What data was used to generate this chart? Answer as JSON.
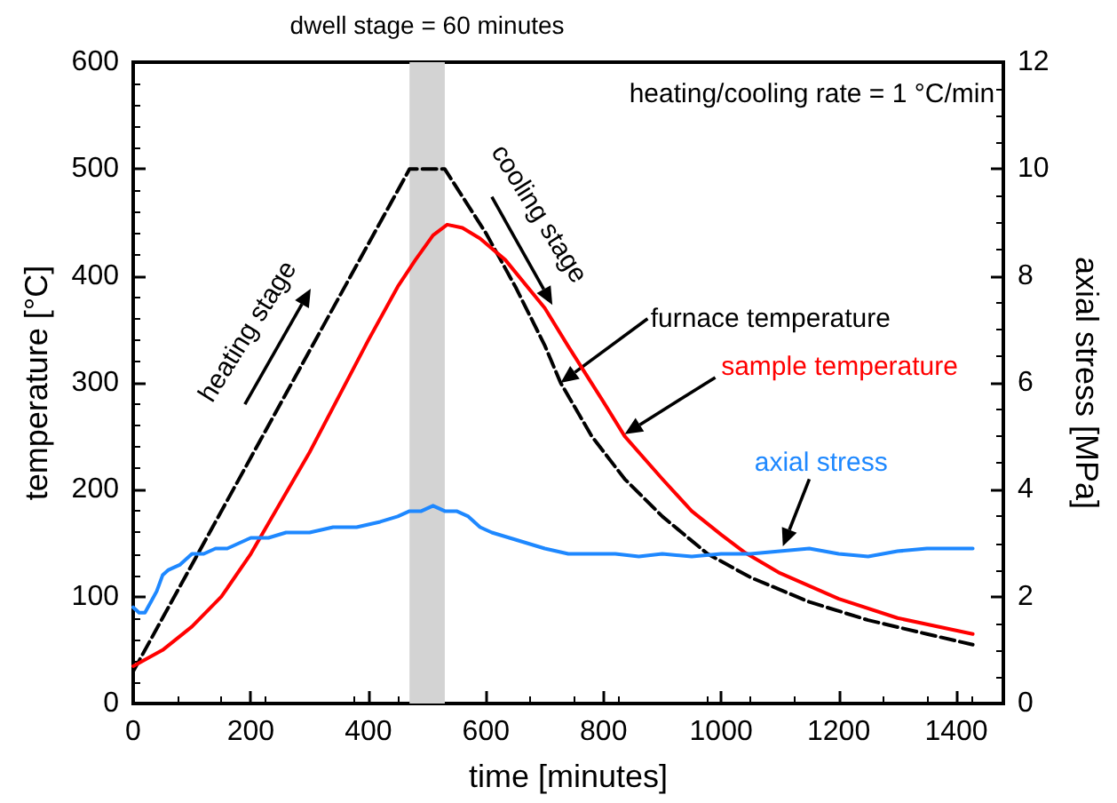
{
  "chart_data": {
    "type": "line",
    "xlabel": "time [minutes]",
    "ylabel": "temperature [°C]",
    "y2label": "axial stress [MPa]",
    "xlim": [
      0,
      1480
    ],
    "xticks": [
      0,
      200,
      400,
      600,
      800,
      1000,
      1200,
      1400
    ],
    "ylim": [
      0,
      600
    ],
    "yticks": [
      0,
      100,
      200,
      300,
      400,
      500,
      600
    ],
    "y2lim": [
      0,
      12
    ],
    "y2ticks": [
      0,
      2,
      4,
      6,
      8,
      10,
      12
    ],
    "grid": false,
    "legend": false,
    "marker": "none",
    "bands": [
      {
        "axis": "x",
        "from": 470,
        "to": 530,
        "label": "dwell stage = 60 minutes",
        "color": "#d3d3d3"
      }
    ],
    "annotations": [
      "heating/cooling rate = 1 °C/min",
      "heating stage",
      "cooling stage"
    ],
    "series": [
      {
        "name": "furnace temperature",
        "color": "#000000",
        "line_style": "dashed",
        "x": [
          0,
          470,
          530,
          600,
          650,
          700,
          727,
          780,
          836,
          900,
          977,
          1050,
          1150,
          1250,
          1350,
          1428
        ],
        "values": [
          30,
          500,
          500,
          440,
          390,
          335,
          300,
          250,
          210,
          175,
          140,
          118,
          95,
          78,
          65,
          55
        ]
      },
      {
        "name": "sample temperature",
        "color": "#ff0000",
        "line_style": "solid",
        "x": [
          0,
          50,
          100,
          150,
          200,
          300,
          400,
          450,
          480,
          510,
          534,
          560,
          590,
          633,
          700,
          739,
          800,
          836,
          900,
          950,
          1000,
          1041,
          1100,
          1200,
          1300,
          1428
        ],
        "values": [
          35,
          50,
          72,
          100,
          140,
          235,
          340,
          390,
          415,
          438,
          448,
          445,
          435,
          415,
          370,
          335,
          282,
          250,
          210,
          180,
          158,
          141,
          122,
          98,
          80,
          65
        ]
      },
      {
        "name": "axial stress",
        "color": "#1e88ff",
        "line_style": "solid",
        "axis": "y2",
        "x": [
          0,
          10,
          20,
          30,
          40,
          50,
          60,
          80,
          100,
          120,
          140,
          160,
          180,
          200,
          230,
          260,
          300,
          340,
          380,
          420,
          450,
          470,
          490,
          510,
          530,
          550,
          570,
          590,
          610,
          640,
          670,
          700,
          740,
          780,
          820,
          860,
          900,
          950,
          1000,
          1050,
          1100,
          1150,
          1200,
          1250,
          1300,
          1350,
          1400,
          1428
        ],
        "values": [
          1.8,
          1.7,
          1.7,
          1.9,
          2.1,
          2.4,
          2.5,
          2.6,
          2.8,
          2.8,
          2.9,
          2.9,
          3.0,
          3.1,
          3.1,
          3.2,
          3.2,
          3.3,
          3.3,
          3.4,
          3.5,
          3.6,
          3.6,
          3.7,
          3.6,
          3.6,
          3.5,
          3.3,
          3.2,
          3.1,
          3.0,
          2.9,
          2.8,
          2.8,
          2.8,
          2.75,
          2.8,
          2.75,
          2.8,
          2.8,
          2.85,
          2.9,
          2.8,
          2.75,
          2.85,
          2.9,
          2.9,
          2.9
        ]
      }
    ]
  }
}
